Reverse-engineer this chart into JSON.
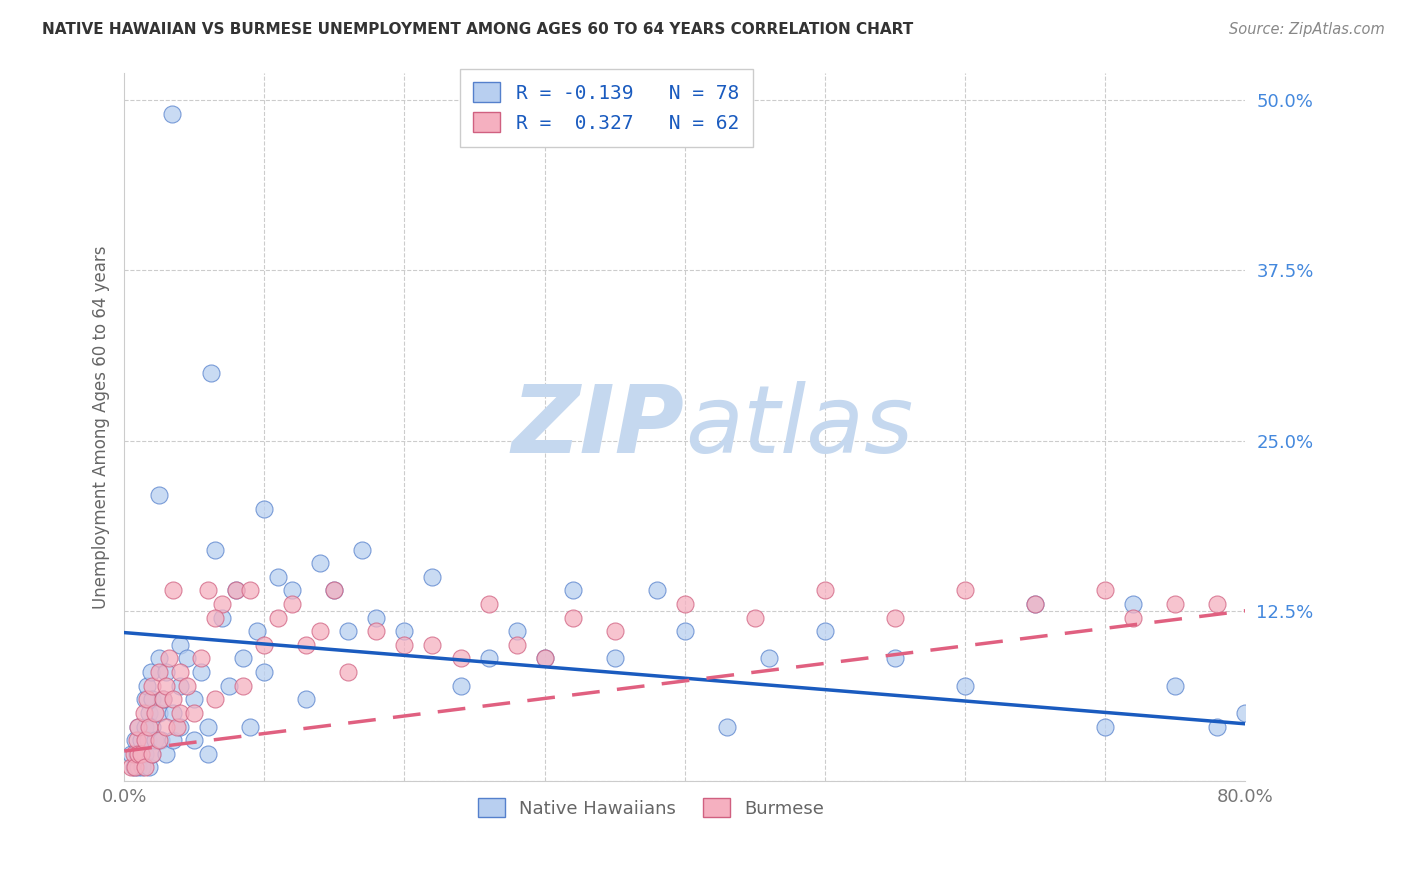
{
  "title": "NATIVE HAWAIIAN VS BURMESE UNEMPLOYMENT AMONG AGES 60 TO 64 YEARS CORRELATION CHART",
  "source": "Source: ZipAtlas.com",
  "ylabel": "Unemployment Among Ages 60 to 64 years",
  "xlim": [
    0.0,
    0.8
  ],
  "ylim": [
    0.0,
    0.52
  ],
  "blue_scatter_color": "#b8cff0",
  "blue_scatter_edge": "#5580cc",
  "pink_scatter_color": "#f5b0c0",
  "pink_scatter_edge": "#d06080",
  "blue_line_color": "#1a5bbf",
  "pink_line_color": "#e06080",
  "ytick_color": "#4488dd",
  "xtick_color": "#777777",
  "grid_color": "#cccccc",
  "watermark_zip_color": "#c8dcf0",
  "watermark_atlas_color": "#c8dcf0",
  "background_color": "#ffffff",
  "title_color": "#333333",
  "source_color": "#888888",
  "axis_label_color": "#666666",
  "nh_x": [
    0.005,
    0.007,
    0.008,
    0.009,
    0.01,
    0.01,
    0.012,
    0.013,
    0.015,
    0.015,
    0.015,
    0.016,
    0.017,
    0.018,
    0.018,
    0.019,
    0.02,
    0.02,
    0.02,
    0.022,
    0.025,
    0.025,
    0.026,
    0.028,
    0.03,
    0.03,
    0.035,
    0.035,
    0.04,
    0.04,
    0.04,
    0.045,
    0.05,
    0.05,
    0.055,
    0.06,
    0.06,
    0.065,
    0.07,
    0.075,
    0.08,
    0.085,
    0.09,
    0.095,
    0.1,
    0.1,
    0.11,
    0.12,
    0.13,
    0.14,
    0.15,
    0.16,
    0.17,
    0.18,
    0.2,
    0.22,
    0.24,
    0.26,
    0.28,
    0.3,
    0.32,
    0.35,
    0.38,
    0.4,
    0.43,
    0.46,
    0.5,
    0.55,
    0.6,
    0.65,
    0.7,
    0.72,
    0.75,
    0.78,
    0.8,
    0.034,
    0.062,
    0.025
  ],
  "nh_y": [
    0.02,
    0.01,
    0.03,
    0.02,
    0.04,
    0.01,
    0.03,
    0.01,
    0.06,
    0.02,
    0.04,
    0.07,
    0.03,
    0.05,
    0.01,
    0.08,
    0.04,
    0.02,
    0.06,
    0.03,
    0.05,
    0.09,
    0.03,
    0.06,
    0.08,
    0.02,
    0.05,
    0.03,
    0.1,
    0.04,
    0.07,
    0.09,
    0.03,
    0.06,
    0.08,
    0.04,
    0.02,
    0.17,
    0.12,
    0.07,
    0.14,
    0.09,
    0.04,
    0.11,
    0.2,
    0.08,
    0.15,
    0.14,
    0.06,
    0.16,
    0.14,
    0.11,
    0.17,
    0.12,
    0.11,
    0.15,
    0.07,
    0.09,
    0.11,
    0.09,
    0.14,
    0.09,
    0.14,
    0.11,
    0.04,
    0.09,
    0.11,
    0.09,
    0.07,
    0.13,
    0.04,
    0.13,
    0.07,
    0.04,
    0.05,
    0.49,
    0.3,
    0.21
  ],
  "bm_x": [
    0.005,
    0.007,
    0.008,
    0.009,
    0.01,
    0.01,
    0.012,
    0.014,
    0.015,
    0.015,
    0.016,
    0.018,
    0.02,
    0.02,
    0.022,
    0.025,
    0.025,
    0.028,
    0.03,
    0.03,
    0.032,
    0.035,
    0.038,
    0.04,
    0.04,
    0.045,
    0.05,
    0.055,
    0.06,
    0.065,
    0.07,
    0.08,
    0.085,
    0.09,
    0.1,
    0.11,
    0.12,
    0.13,
    0.14,
    0.15,
    0.16,
    0.18,
    0.2,
    0.22,
    0.24,
    0.26,
    0.28,
    0.3,
    0.32,
    0.35,
    0.4,
    0.45,
    0.5,
    0.55,
    0.6,
    0.65,
    0.7,
    0.72,
    0.75,
    0.78,
    0.035,
    0.065
  ],
  "bm_y": [
    0.01,
    0.02,
    0.01,
    0.03,
    0.02,
    0.04,
    0.02,
    0.05,
    0.03,
    0.01,
    0.06,
    0.04,
    0.07,
    0.02,
    0.05,
    0.08,
    0.03,
    0.06,
    0.07,
    0.04,
    0.09,
    0.06,
    0.04,
    0.08,
    0.05,
    0.07,
    0.05,
    0.09,
    0.14,
    0.06,
    0.13,
    0.14,
    0.07,
    0.14,
    0.1,
    0.12,
    0.13,
    0.1,
    0.11,
    0.14,
    0.08,
    0.11,
    0.1,
    0.1,
    0.09,
    0.13,
    0.1,
    0.09,
    0.12,
    0.11,
    0.13,
    0.12,
    0.14,
    0.12,
    0.14,
    0.13,
    0.14,
    0.12,
    0.13,
    0.13,
    0.14,
    0.12
  ],
  "nh_line_x0": 0.0,
  "nh_line_x1": 0.8,
  "nh_line_y0": 0.109,
  "nh_line_y1": 0.042,
  "bm_line_x0": 0.0,
  "bm_line_x1": 0.8,
  "bm_line_y0": 0.022,
  "bm_line_y1": 0.125
}
